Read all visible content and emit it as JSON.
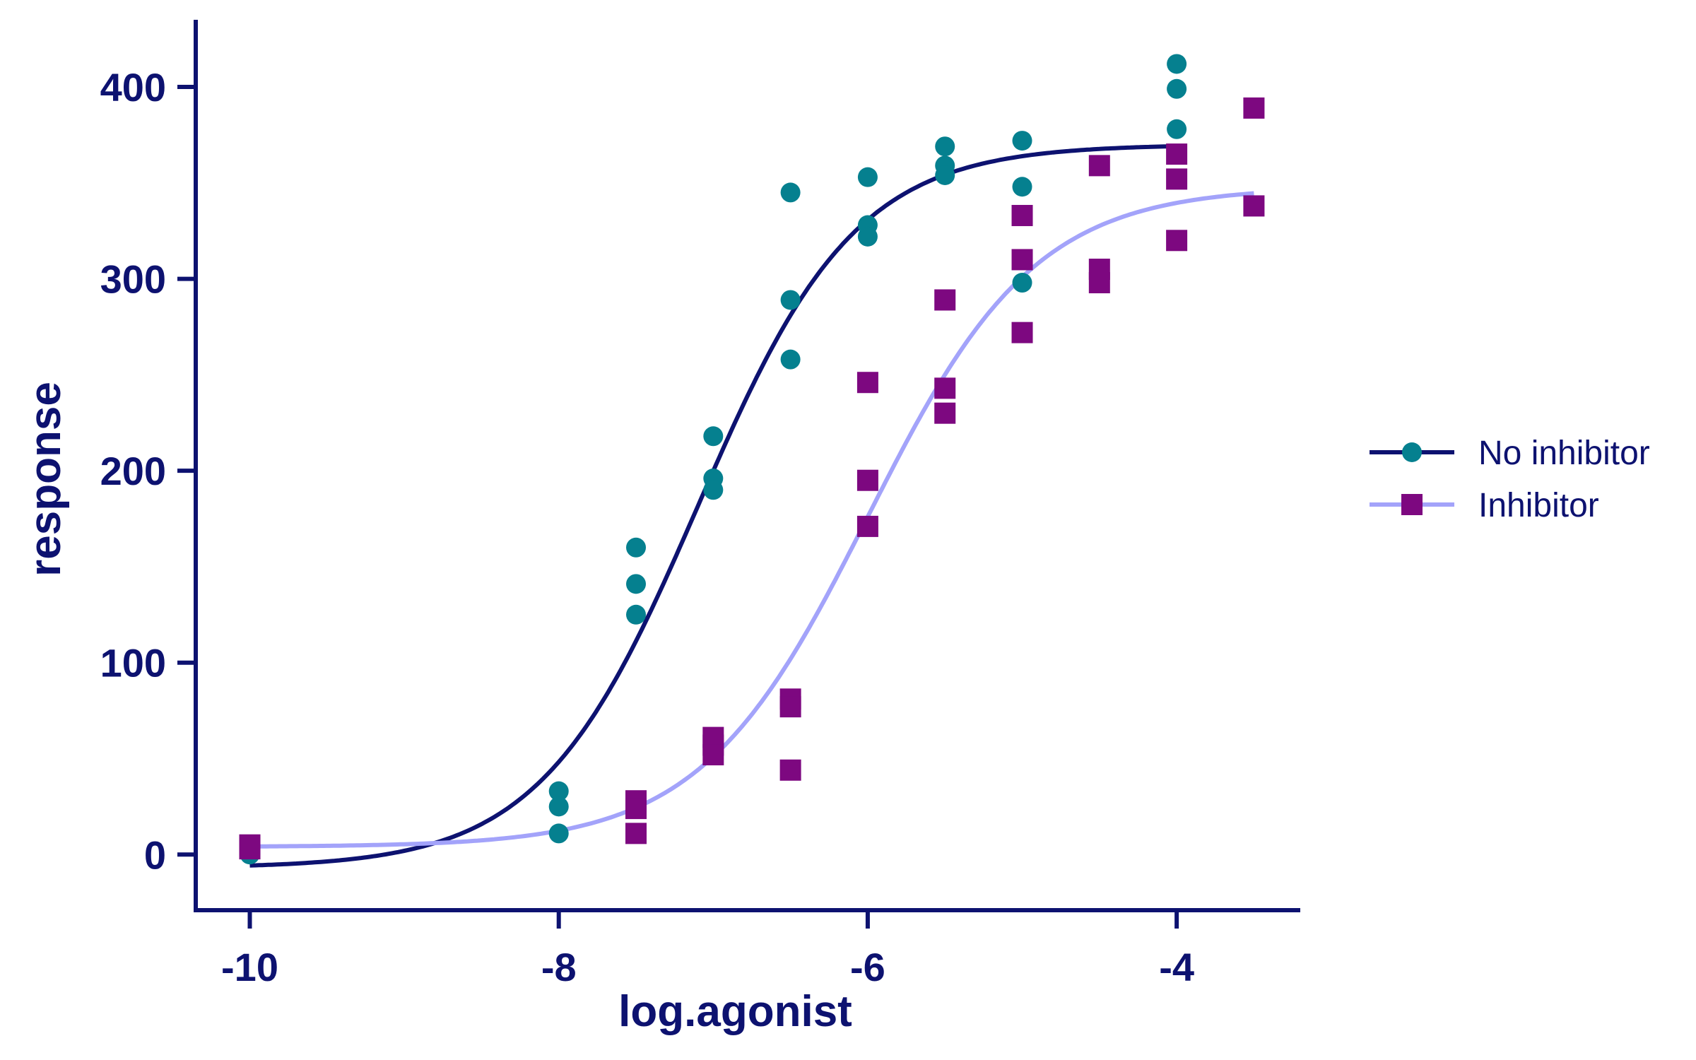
{
  "chart_data": {
    "type": "scatter",
    "xlabel": "log.agonist",
    "ylabel": "response",
    "xlim": [
      -10.35,
      -3.2
    ],
    "ylim": [
      -29,
      435
    ],
    "xticks": [
      -10,
      -8,
      -6,
      -4
    ],
    "yticks": [
      0,
      100,
      200,
      300,
      400
    ],
    "grid": false,
    "legend_position": "right",
    "series": [
      {
        "name": "No inhibitor",
        "marker": "circle",
        "marker_color": "#05808f",
        "curve_color": "#0d1270",
        "fit": {
          "bottom": -7,
          "top": 370,
          "logec50": -7.1,
          "hill": 0.85
        },
        "curve_range": [
          -10,
          -4
        ],
        "points": [
          {
            "x": -10,
            "y": 0
          },
          {
            "x": -8,
            "y": 33
          },
          {
            "x": -8,
            "y": 25
          },
          {
            "x": -8,
            "y": 11
          },
          {
            "x": -7.5,
            "y": 160
          },
          {
            "x": -7.5,
            "y": 141
          },
          {
            "x": -7.5,
            "y": 125
          },
          {
            "x": -7,
            "y": 218
          },
          {
            "x": -7,
            "y": 196
          },
          {
            "x": -7,
            "y": 190
          },
          {
            "x": -6.5,
            "y": 345
          },
          {
            "x": -6.5,
            "y": 289
          },
          {
            "x": -6.5,
            "y": 258
          },
          {
            "x": -6,
            "y": 353
          },
          {
            "x": -6,
            "y": 328
          },
          {
            "x": -6,
            "y": 322
          },
          {
            "x": -5.5,
            "y": 369
          },
          {
            "x": -5.5,
            "y": 359
          },
          {
            "x": -5.5,
            "y": 354
          },
          {
            "x": -5,
            "y": 372
          },
          {
            "x": -5,
            "y": 348
          },
          {
            "x": -5,
            "y": 298
          },
          {
            "x": -4,
            "y": 412
          },
          {
            "x": -4,
            "y": 399
          },
          {
            "x": -4,
            "y": 378
          }
        ]
      },
      {
        "name": "Inhibitor",
        "marker": "square",
        "marker_color": "#7d0880",
        "curve_color": "#a3a3fa",
        "fit": {
          "bottom": 4,
          "top": 348,
          "logec50": -6.0,
          "hill": 0.8
        },
        "curve_range": [
          -10,
          -3.5
        ],
        "points": [
          {
            "x": -10,
            "y": 5
          },
          {
            "x": -10,
            "y": 3
          },
          {
            "x": -7.5,
            "y": 28
          },
          {
            "x": -7.5,
            "y": 24
          },
          {
            "x": -7.5,
            "y": 11
          },
          {
            "x": -7,
            "y": 61
          },
          {
            "x": -7,
            "y": 57
          },
          {
            "x": -7,
            "y": 52
          },
          {
            "x": -6.5,
            "y": 81
          },
          {
            "x": -6.5,
            "y": 77
          },
          {
            "x": -6.5,
            "y": 44
          },
          {
            "x": -6,
            "y": 246
          },
          {
            "x": -6,
            "y": 195
          },
          {
            "x": -6,
            "y": 171
          },
          {
            "x": -5.5,
            "y": 289
          },
          {
            "x": -5.5,
            "y": 243
          },
          {
            "x": -5.5,
            "y": 230
          },
          {
            "x": -5,
            "y": 333
          },
          {
            "x": -5,
            "y": 310
          },
          {
            "x": -5,
            "y": 272
          },
          {
            "x": -4.5,
            "y": 359
          },
          {
            "x": -4.5,
            "y": 305
          },
          {
            "x": -4.5,
            "y": 298
          },
          {
            "x": -4,
            "y": 365
          },
          {
            "x": -4,
            "y": 352
          },
          {
            "x": -4,
            "y": 320
          },
          {
            "x": -3.5,
            "y": 389
          },
          {
            "x": -3.5,
            "y": 338
          }
        ]
      }
    ]
  },
  "colors": {
    "axis": "#0d1270",
    "text": "#0d1270"
  }
}
